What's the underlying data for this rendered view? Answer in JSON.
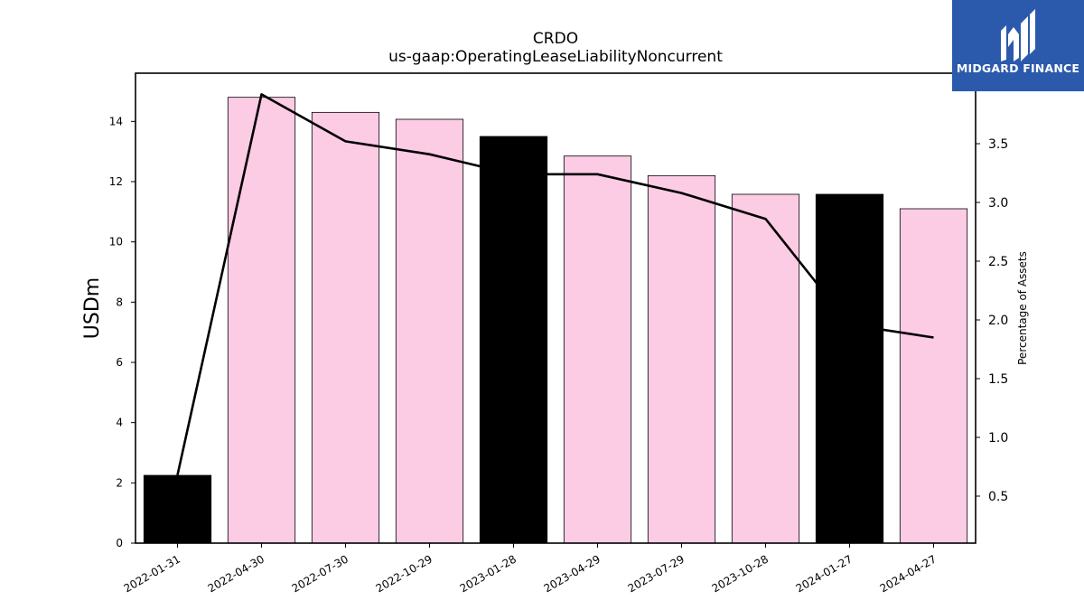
{
  "logo": {
    "text": "MIDGARD FINANCE",
    "background": "#2b5aad"
  },
  "chart_data": {
    "type": "bar",
    "title": "CRDO",
    "subtitle": "us-gaap:OperatingLeaseLiabilityNoncurrent",
    "ylabel": "USDm",
    "y2label": "Percentage of Assets",
    "categories": [
      "2022-01-31",
      "2022-04-30",
      "2022-07-30",
      "2022-10-29",
      "2023-01-28",
      "2023-04-29",
      "2023-07-29",
      "2023-10-28",
      "2024-01-27",
      "2024-04-27"
    ],
    "series": [
      {
        "type": "bar",
        "axis": "left",
        "values": [
          2.25,
          14.8,
          14.3,
          14.07,
          13.5,
          12.85,
          12.2,
          11.58,
          11.58,
          11.1
        ],
        "colors": [
          "#000000",
          "#fccbe4",
          "#fccbe4",
          "#fccbe4",
          "#000000",
          "#fccbe4",
          "#fccbe4",
          "#fccbe4",
          "#000000",
          "#fccbe4"
        ]
      },
      {
        "type": "line",
        "axis": "right",
        "values": [
          0.68,
          3.92,
          3.52,
          3.41,
          3.24,
          3.24,
          3.08,
          2.86,
          1.96,
          1.85
        ],
        "color": "#000000"
      }
    ],
    "ylim": [
      0,
      15.6
    ],
    "yticks": [
      0,
      2,
      4,
      6,
      8,
      10,
      12,
      14
    ],
    "y2lim": [
      0.1,
      4.1
    ],
    "y2ticks": [
      0.5,
      1.0,
      1.5,
      2.0,
      2.5,
      3.0,
      3.5
    ],
    "y2ticklabels": [
      "0.5",
      "1.0",
      "1.5",
      "2.0",
      "2.5",
      "3.0",
      "3.5"
    ],
    "grid": false,
    "legend": "none"
  }
}
